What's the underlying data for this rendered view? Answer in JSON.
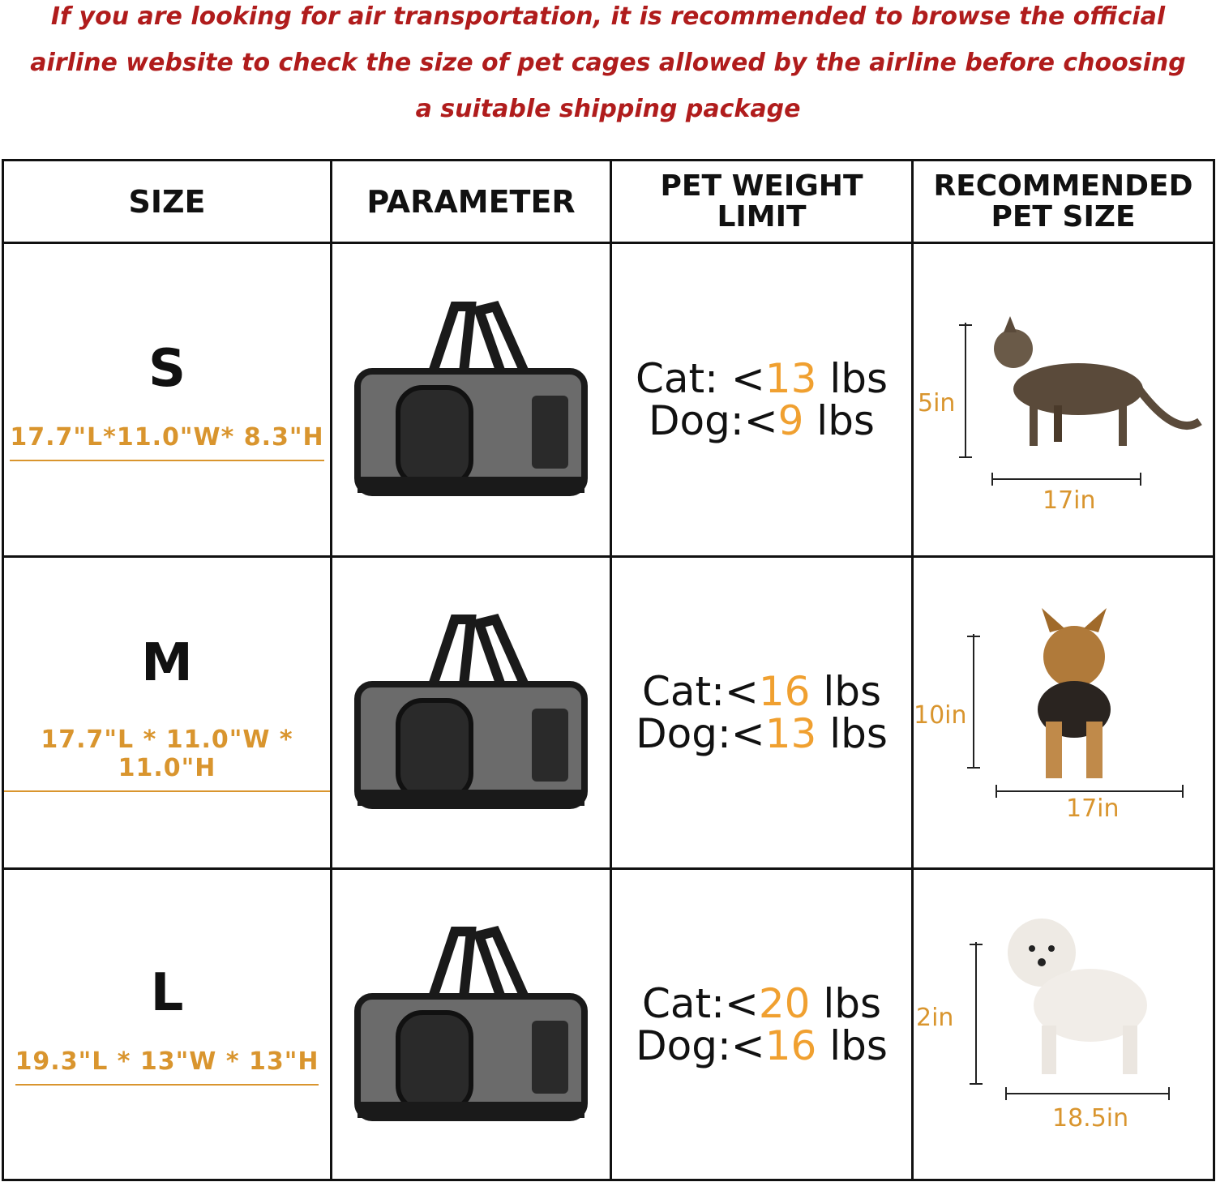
{
  "notice": "If you are looking for air transportation, it is recommended to browse the official airline website to check the size of pet cages allowed by the airline before choosing a suitable shipping package",
  "headers": [
    "SIZE",
    "PARAMETER",
    "PET WEIGHT LIMIT",
    "RECOMMENDED PET SIZE"
  ],
  "rows": [
    {
      "size": "S",
      "dims": "17.7\"L*11.0\"W* 8.3\"H",
      "cat_label": "Cat: <",
      "cat": "13",
      "dog_label": "Dog:<",
      "dog": "9",
      "unit": " lbs",
      "pet": "cat",
      "height": "5in",
      "length": "17in"
    },
    {
      "size": "M",
      "dims": "17.7\"L * 11.0\"W * 11.0\"H",
      "cat_label": "Cat:<",
      "cat": "16",
      "dog_label": "Dog:<",
      "dog": "13",
      "unit": " lbs",
      "pet": "yorkshire-terrier",
      "height": "10in",
      "length": "17in"
    },
    {
      "size": "L",
      "dims": "19.3\"L * 13\"W * 13\"H",
      "cat_label": "Cat:<",
      "cat": "20",
      "dog_label": "Dog:<",
      "dog": "16",
      "unit": " lbs",
      "pet": "maltese",
      "height": "2in",
      "length": "18.5in"
    }
  ],
  "colors": {
    "notice": "#b01c1c",
    "accent": "#d9952e",
    "carrier": "#6b6b6b"
  }
}
